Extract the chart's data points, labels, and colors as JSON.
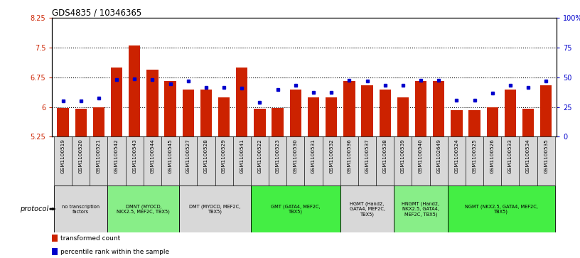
{
  "title": "GDS4835 / 10346365",
  "samples": [
    "GSM1100519",
    "GSM1100520",
    "GSM1100521",
    "GSM1100542",
    "GSM1100543",
    "GSM1100544",
    "GSM1100545",
    "GSM1100527",
    "GSM1100528",
    "GSM1100529",
    "GSM1100541",
    "GSM1100522",
    "GSM1100523",
    "GSM1100530",
    "GSM1100531",
    "GSM1100532",
    "GSM1100536",
    "GSM1100537",
    "GSM1100538",
    "GSM1100539",
    "GSM1100540",
    "GSM1102649",
    "GSM1100524",
    "GSM1100525",
    "GSM1100526",
    "GSM1100533",
    "GSM1100534",
    "GSM1100535"
  ],
  "bar_values": [
    5.97,
    5.96,
    6.0,
    7.0,
    7.55,
    6.95,
    6.65,
    6.45,
    6.45,
    6.25,
    7.0,
    5.95,
    5.97,
    6.45,
    6.25,
    6.25,
    6.65,
    6.55,
    6.45,
    6.25,
    6.65,
    6.65,
    5.93,
    5.93,
    6.0,
    6.45,
    5.96,
    6.55
  ],
  "dot_values": [
    6.15,
    6.15,
    6.22,
    6.7,
    6.72,
    6.7,
    6.58,
    6.65,
    6.5,
    6.5,
    6.48,
    6.12,
    6.45,
    6.55,
    6.37,
    6.37,
    6.68,
    6.65,
    6.55,
    6.55,
    6.68,
    6.68,
    6.18,
    6.18,
    6.35,
    6.55,
    6.5,
    6.65
  ],
  "ymin": 5.25,
  "ymax": 8.25,
  "yticks": [
    5.25,
    6.0,
    6.75,
    7.5,
    8.25
  ],
  "ytick_labels": [
    "5.25",
    "6",
    "6.75",
    "7.5",
    "8.25"
  ],
  "right_yticks": [
    0,
    25,
    50,
    75,
    100
  ],
  "right_ytick_labels": [
    "0",
    "25",
    "50",
    "75",
    "100%"
  ],
  "bar_color": "#cc2200",
  "dot_color": "#0000cc",
  "protocol_groups": [
    {
      "label": "no transcription\nfactors",
      "start": 0,
      "end": 3,
      "color": "#d8d8d8"
    },
    {
      "label": "DMNT (MYOCD,\nNKX2.5, MEF2C, TBX5)",
      "start": 3,
      "end": 7,
      "color": "#88ee88"
    },
    {
      "label": "DMT (MYOCD, MEF2C,\nTBX5)",
      "start": 7,
      "end": 11,
      "color": "#d8d8d8"
    },
    {
      "label": "GMT (GATA4, MEF2C,\nTBX5)",
      "start": 11,
      "end": 16,
      "color": "#44ee44"
    },
    {
      "label": "HGMT (Hand2,\nGATA4, MEF2C,\nTBX5)",
      "start": 16,
      "end": 19,
      "color": "#d8d8d8"
    },
    {
      "label": "HNGMT (Hand2,\nNKX2.5, GATA4,\nMEF2C, TBX5)",
      "start": 19,
      "end": 22,
      "color": "#88ee88"
    },
    {
      "label": "NGMT (NKX2.5, GATA4, MEF2C,\nTBX5)",
      "start": 22,
      "end": 28,
      "color": "#44ee44"
    }
  ]
}
